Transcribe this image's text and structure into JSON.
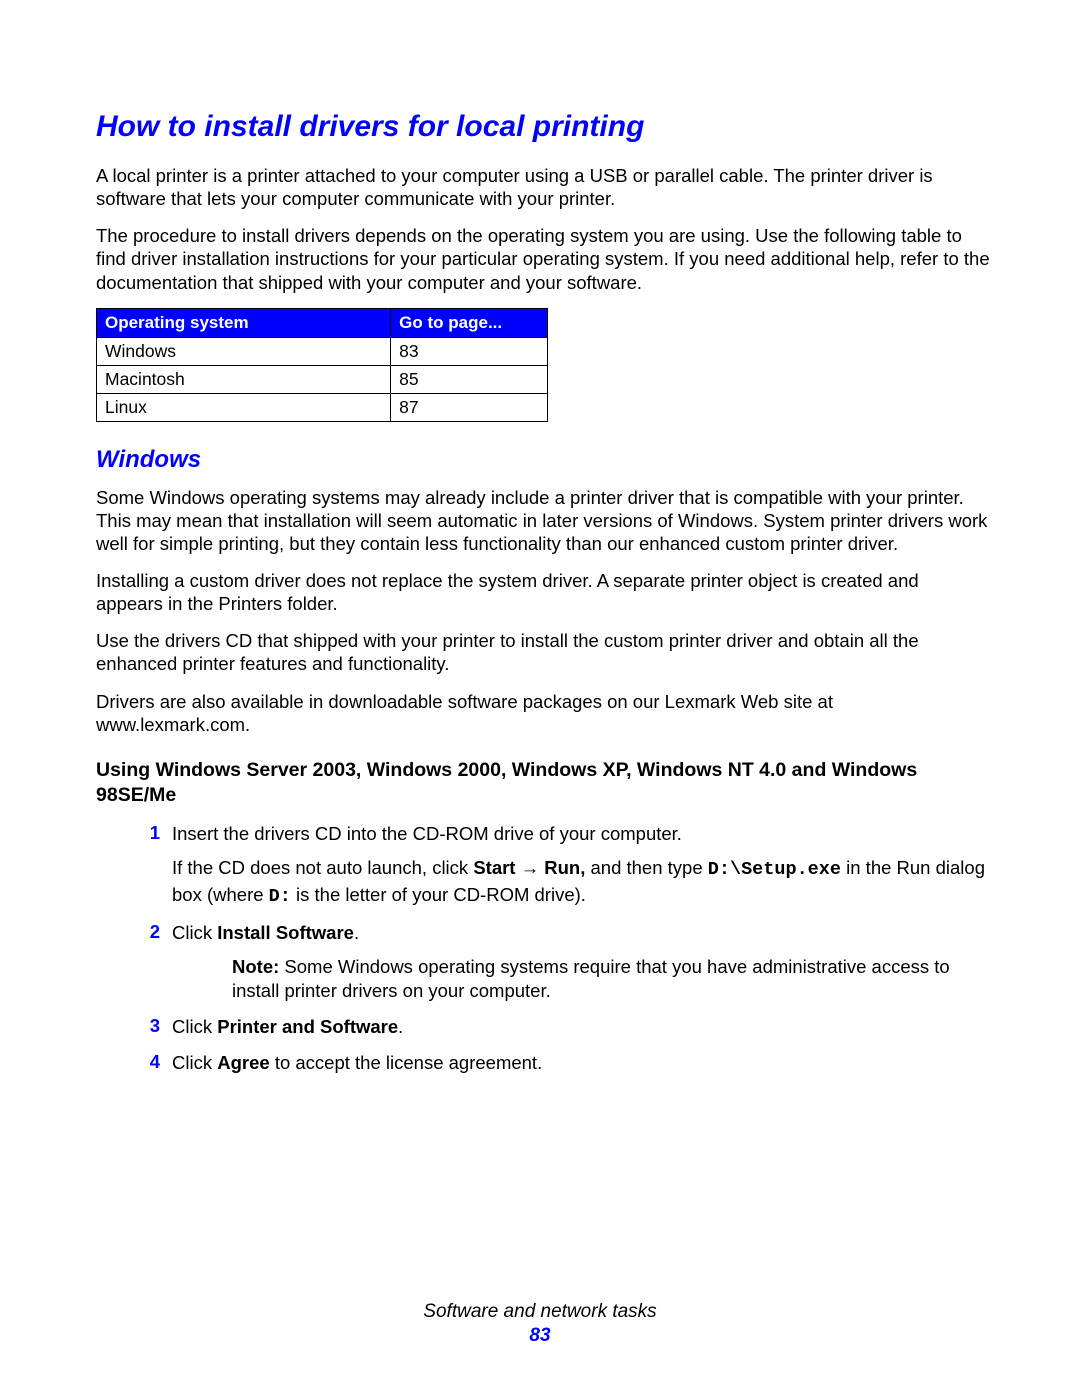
{
  "title": "How to install drivers for local printing",
  "intro1": "A local printer is a printer attached to your computer using a USB or parallel cable. The printer driver is software that lets your computer communicate with your printer.",
  "intro2": "The procedure to install drivers depends on the operating system you are using. Use the following table to find driver installation instructions for your particular operating system. If you need additional help, refer to the documentation that shipped with your computer and your software.",
  "table": {
    "header_bg": "#0000ff",
    "header_fg": "#ffffff",
    "cols": [
      "Operating system",
      "Go to page..."
    ],
    "rows": [
      [
        "Windows",
        "83"
      ],
      [
        "Macintosh",
        "85"
      ],
      [
        "Linux",
        "87"
      ]
    ]
  },
  "sub_title": "Windows",
  "win_p1": "Some Windows operating systems may already include a printer driver that is compatible with your printer. This may mean that installation will seem automatic in later versions of Windows. System printer drivers work well for simple printing, but they contain less functionality than our enhanced custom printer driver.",
  "win_p2": "Installing a custom driver does not replace the system driver. A separate printer object is created and appears in the Printers folder.",
  "win_p3": "Use the drivers CD that shipped with your printer to install the custom printer driver and obtain all the enhanced printer features and functionality.",
  "win_p4": "Drivers are also available in downloadable software packages on our Lexmark Web site at www.lexmark.com.",
  "section_title": "Using Windows Server 2003, Windows 2000, Windows XP, Windows NT 4.0 and Windows 98SE/Me",
  "steps": {
    "s1": {
      "num": "1",
      "text": "Insert the drivers CD into the CD-ROM drive of your computer."
    },
    "s1b_pre": "If the CD does not auto launch, click ",
    "s1b_start": "Start",
    "s1b_arrow": " → ",
    "s1b_run": "Run,",
    "s1b_mid": " and then type ",
    "s1b_cmd": "D:\\Setup.exe",
    "s1b_post1": " in the Run dialog box (where ",
    "s1b_drive": "D:",
    "s1b_post2": " is the letter of your CD-ROM drive).",
    "s2": {
      "num": "2",
      "pre": "Click ",
      "bold": "Install Software",
      "post": "."
    },
    "s2note_label": "Note:",
    "s2note_text": " Some Windows operating systems require that you have administrative access to install printer drivers on your computer.",
    "s3": {
      "num": "3",
      "pre": "Click ",
      "bold": "Printer and Software",
      "post": "."
    },
    "s4": {
      "num": "4",
      "pre": "Click ",
      "bold": "Agree",
      "post": " to accept the license agreement."
    }
  },
  "footer": {
    "section": "Software and network tasks",
    "page": "83"
  },
  "colors": {
    "accent": "#0000ff",
    "text": "#000000",
    "bg": "#ffffff"
  }
}
